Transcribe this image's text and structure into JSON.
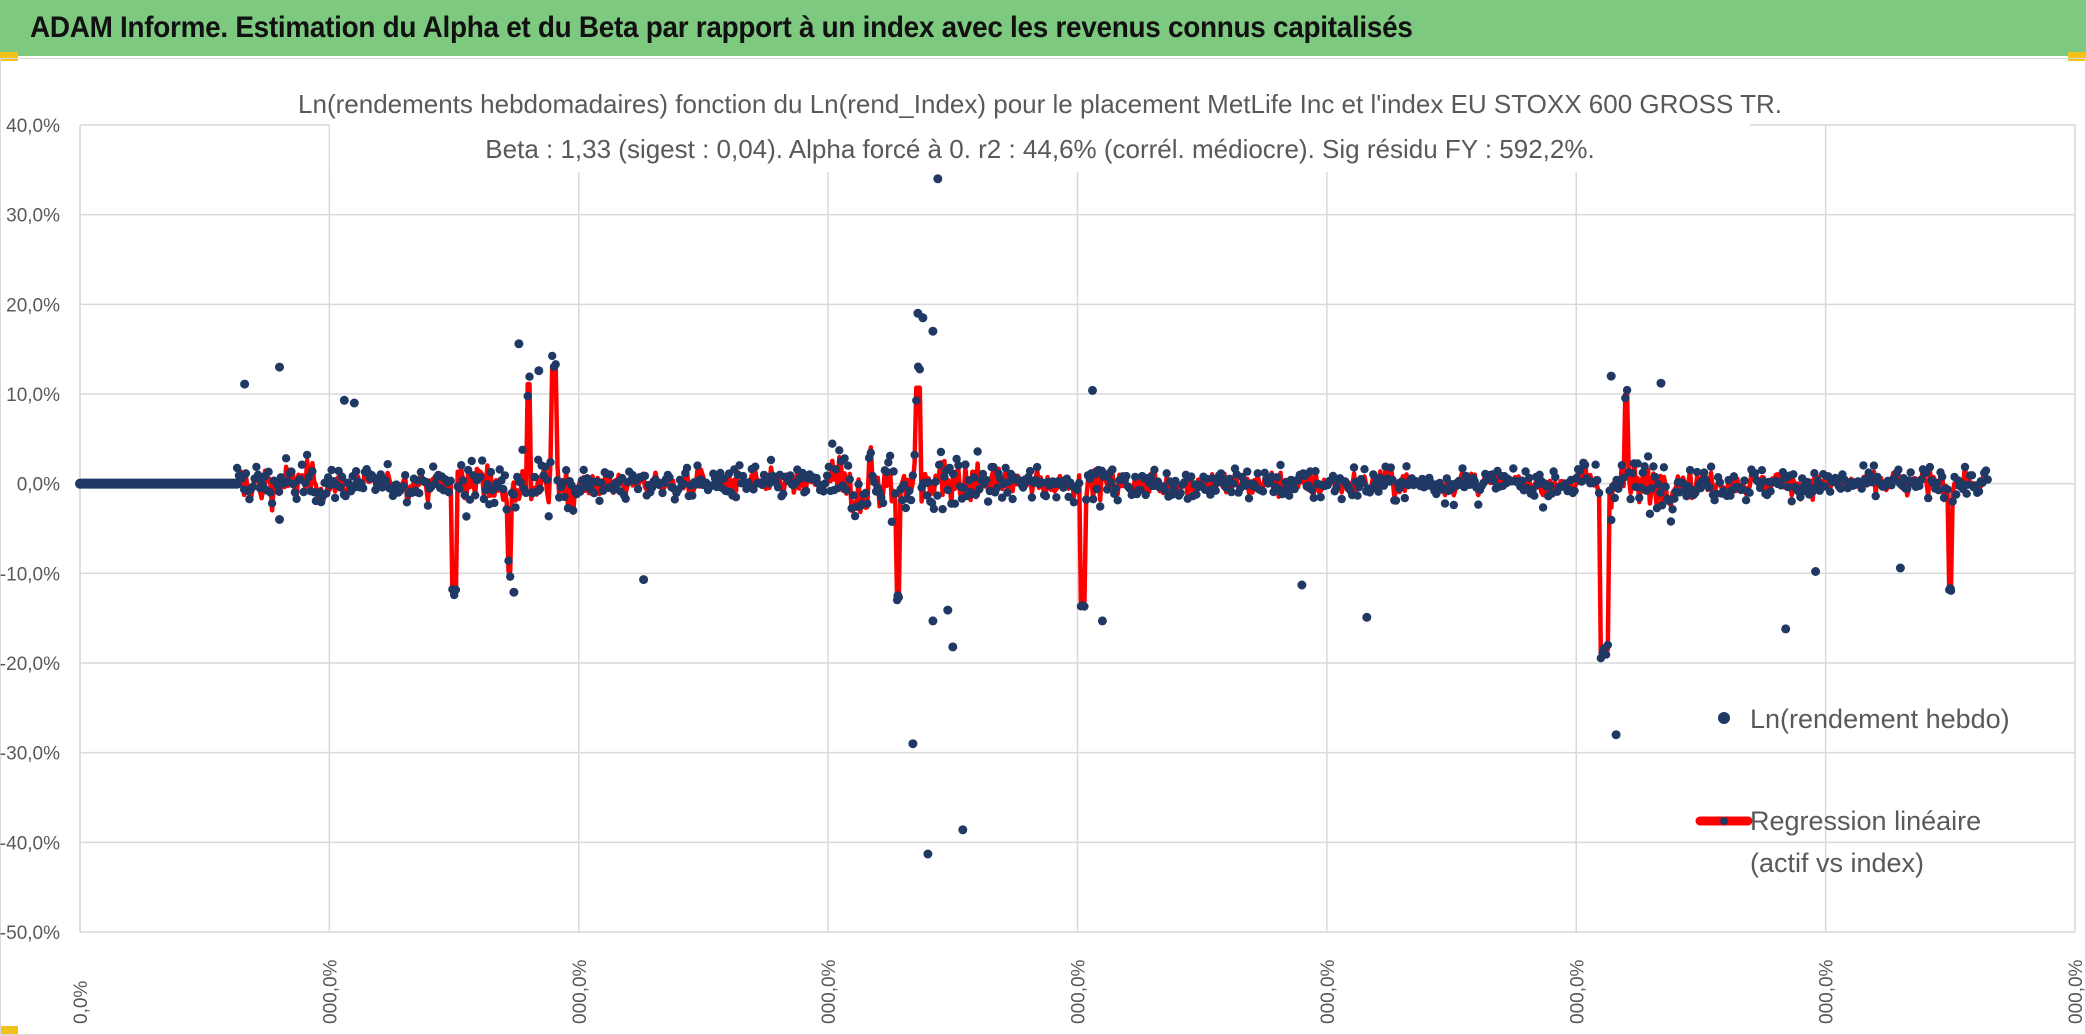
{
  "header": {
    "title": "ADAM Informe. Estimation du Alpha et du Beta par rapport à un index avec les revenus connus capitalisés"
  },
  "colors": {
    "banner": "#7dc97f",
    "corner_accent": "#f2c21b",
    "scatter": "#1f3864",
    "regression": "#ff0000",
    "grid": "#d9d9d9",
    "text": "#595959"
  },
  "chart_data": {
    "type": "scatter",
    "title": "Ln(rendements hebdomadaires) fonction du Ln(rend_Index) pour le placement MetLife Inc et l'index EU STOXX 600 GROSS TR.",
    "subtitle": "Beta : 1,33 (sigest : 0,04). Alpha forcé à 0. r2 : 44,6% (corrél. médiocre). Sig résidu FY : 592,2%.",
    "xlabel": "",
    "ylabel": "",
    "ylim": [
      -0.5,
      0.4
    ],
    "y_ticks": [
      "40,0%",
      "30,0%",
      "20,0%",
      "10,0%",
      "0,0%",
      "-10,0%",
      "-20,0%",
      "-30,0%",
      "-40,0%",
      "-50,0%"
    ],
    "x_ticks": [
      "0,0%",
      "000,0%",
      "000,0%",
      "000,0%",
      "000,0%",
      "000,0%",
      "000,0%",
      "000,0%",
      "000,0%"
    ],
    "grid": true,
    "legend_position": "right",
    "series": [
      {
        "name": "Ln(rendement hebdo)",
        "kind": "points"
      },
      {
        "name": "Regression linéaire",
        "name_line2": "(actif vs index)",
        "kind": "line"
      }
    ],
    "notable_points": [
      [
        0.172,
        0.34
      ],
      [
        0.168,
        0.19
      ],
      [
        0.169,
        0.185
      ],
      [
        0.171,
        0.17
      ],
      [
        0.167,
        -0.29
      ],
      [
        0.17,
        -0.413
      ],
      [
        0.177,
        -0.386
      ],
      [
        0.308,
        -0.28
      ],
      [
        0.04,
        0.13
      ],
      [
        0.033,
        0.111
      ],
      [
        0.053,
        0.093
      ],
      [
        0.055,
        0.09
      ],
      [
        0.088,
        0.156
      ],
      [
        0.092,
        0.126
      ],
      [
        0.087,
        -0.121
      ],
      [
        0.04,
        -0.04
      ],
      [
        0.113,
        -0.107
      ],
      [
        0.205,
        -0.153
      ],
      [
        0.258,
        -0.149
      ],
      [
        0.307,
        0.12
      ],
      [
        0.317,
        0.112
      ],
      [
        0.342,
        -0.162
      ],
      [
        0.348,
        -0.098
      ],
      [
        0.203,
        0.104
      ],
      [
        0.164,
        -0.125
      ],
      [
        0.171,
        -0.153
      ],
      [
        0.174,
        -0.141
      ],
      [
        0.175,
        -0.182
      ],
      [
        0.245,
        -0.113
      ],
      [
        0.375,
        -0.117
      ],
      [
        0.365,
        -0.094
      ]
    ],
    "regression_spikes": [
      [
        0.095,
        0.131
      ],
      [
        0.09,
        0.111
      ],
      [
        0.168,
        0.107
      ],
      [
        0.164,
        -0.13
      ],
      [
        0.305,
        -0.19
      ],
      [
        0.306,
        -0.185
      ],
      [
        0.075,
        -0.123
      ],
      [
        0.086,
        -0.098
      ],
      [
        0.375,
        -0.116
      ],
      [
        0.201,
        -0.133
      ],
      [
        0.31,
        0.1
      ],
      [
        0.155,
        -0.03
      ]
    ]
  }
}
